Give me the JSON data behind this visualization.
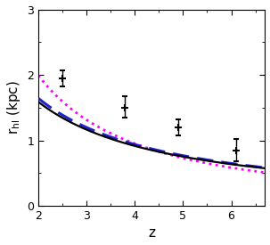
{
  "title": "",
  "xlabel": "z",
  "ylabel": "r$_{hl}$ (kpc)",
  "xlim": [
    2.0,
    6.7
  ],
  "ylim": [
    0.0,
    3.0
  ],
  "xticks": [
    2,
    3,
    4,
    5,
    6
  ],
  "yticks": [
    0,
    1,
    2,
    3
  ],
  "data_points": {
    "x": [
      2.5,
      3.8,
      4.9,
      6.1
    ],
    "y": [
      1.95,
      1.5,
      1.2,
      0.85
    ],
    "yerr_up": [
      0.12,
      0.17,
      0.12,
      0.17
    ],
    "yerr_down": [
      0.12,
      0.15,
      0.12,
      0.17
    ]
  },
  "curve_black": {
    "color": "#000000",
    "style": "solid",
    "lw": 1.6,
    "A": 5.2,
    "n": -1.08
  },
  "curve_blue": {
    "color": "#2222cc",
    "style": "dashed",
    "lw": 2.2,
    "A": 5.5,
    "n": -1.1
  },
  "curve_magenta": {
    "color": "#ff00ff",
    "style": "dotted",
    "lw": 2.0,
    "A": 9.8,
    "n": -1.45
  },
  "background_color": "#ffffff",
  "panel_color": "#ffffff",
  "label_fontsize": 11,
  "tick_fontsize": 9
}
